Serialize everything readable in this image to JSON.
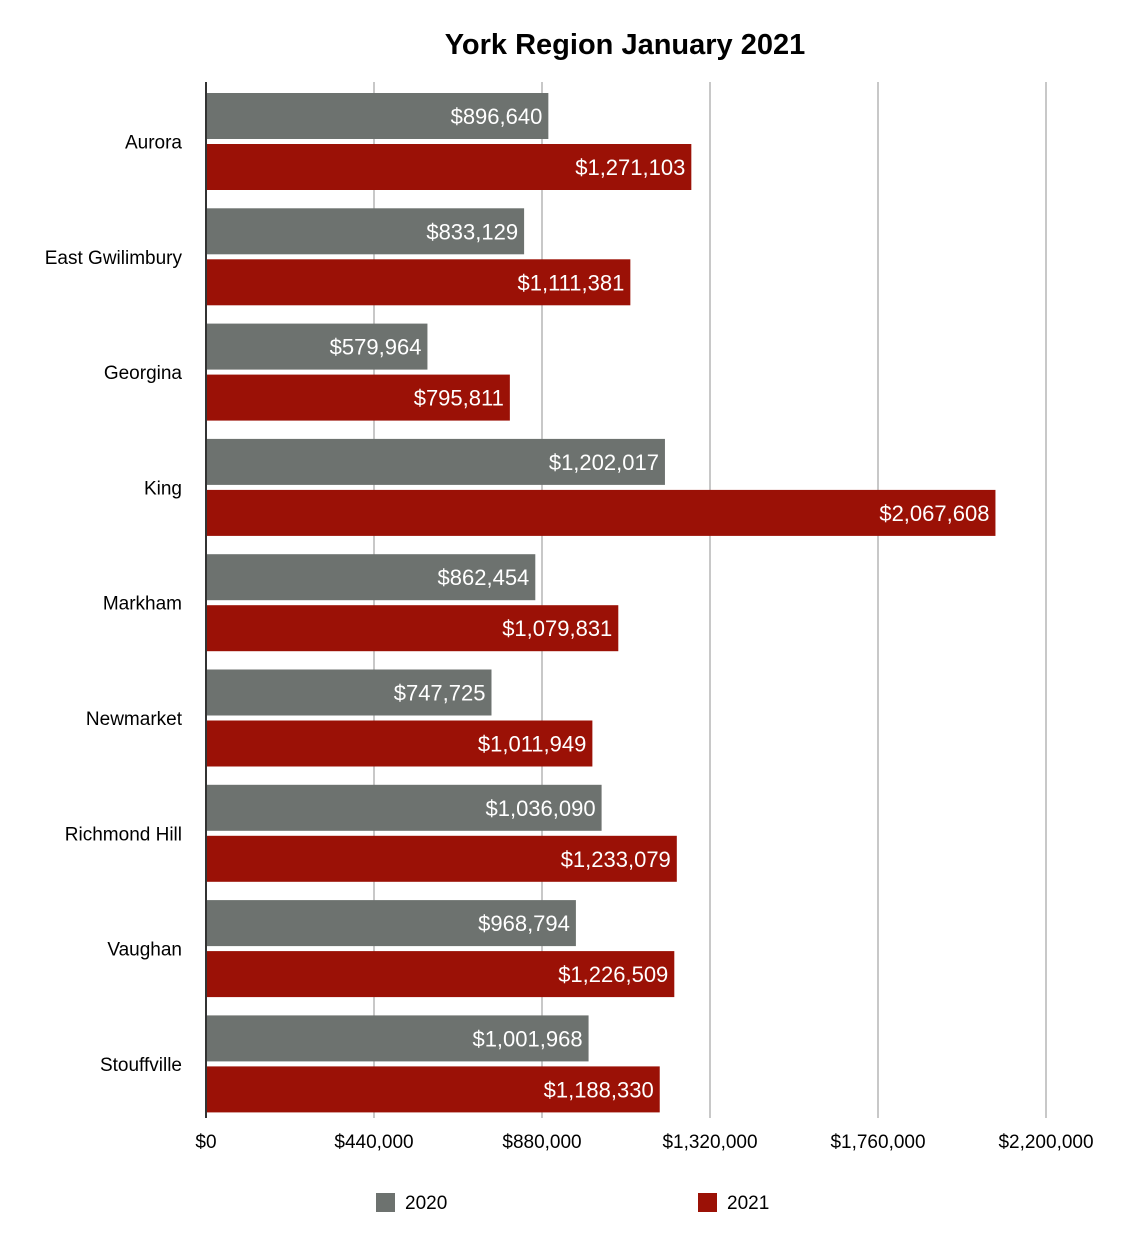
{
  "chart_data": {
    "type": "bar",
    "orientation": "horizontal",
    "title": "York Region January 2021",
    "xlabel": "",
    "ylabel": "",
    "categories": [
      "Aurora",
      "East Gwilimbury",
      "Georgina",
      "King",
      "Markham",
      "Newmarket",
      "Richmond Hill",
      "Vaughan",
      "Stouffville"
    ],
    "series": [
      {
        "name": "2020",
        "color": "#6d726f",
        "values": [
          896640,
          833129,
          579964,
          1202017,
          862454,
          747725,
          1036090,
          968794,
          1001968
        ],
        "labels": [
          "$896,640",
          "$833,129",
          "$579,964",
          "$1,202,017",
          "$862,454",
          "$747,725",
          "$1,036,090",
          "$968,794",
          "$1,001,968"
        ]
      },
      {
        "name": "2021",
        "color": "#9b1106",
        "values": [
          1271103,
          1111381,
          795811,
          2067608,
          1079831,
          1011949,
          1233079,
          1226509,
          1188330
        ],
        "labels": [
          "$1,271,103",
          "$1,111,381",
          "$795,811",
          "$2,067,608",
          "$1,079,831",
          "$1,011,949",
          "$1,233,079",
          "$1,226,509",
          "$1,188,330"
        ]
      }
    ],
    "xlim": [
      0,
      2200000
    ],
    "xticks": [
      0,
      440000,
      880000,
      1320000,
      1760000,
      2200000
    ],
    "xtick_labels": [
      "$0",
      "$440,000",
      "$880,000",
      "$1,320,000",
      "$1,760,000",
      "$2,200,000"
    ],
    "grid": true,
    "legend_position": "bottom"
  }
}
